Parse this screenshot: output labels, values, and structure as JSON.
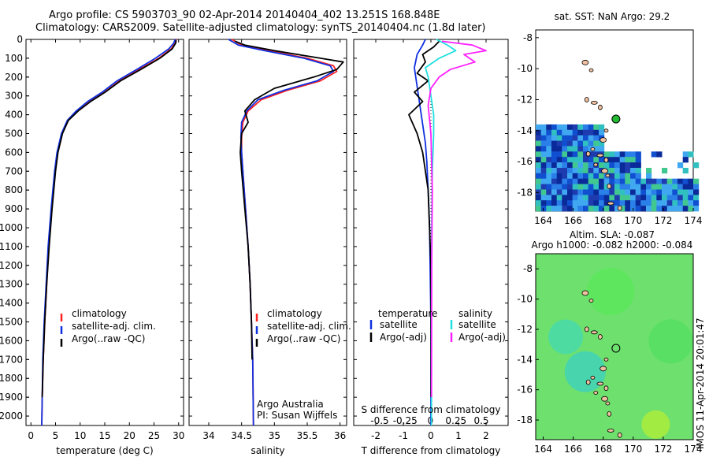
{
  "title": {
    "line1": "Argo profile: CS 5903703_90 02-Apr-2014 20140404_402 13.251S 168.848E",
    "line2": "Climatology: CARS2009. Satellite-adjusted climatology: synTS_20140404.nc (1.8d later)"
  },
  "colors": {
    "climatology": "#ff2020",
    "satellite": "#1030e0",
    "argo": "#000000",
    "sal_satellite": "#20e0e0",
    "sal_argo": "#ff20ff",
    "float_sst": "#22bb33"
  },
  "depth_axis": {
    "ticks": [
      0,
      100,
      200,
      300,
      400,
      500,
      600,
      700,
      800,
      900,
      1000,
      1100,
      1200,
      1300,
      1400,
      1500,
      1600,
      1700,
      1800,
      1900,
      2000
    ],
    "range": [
      0,
      2050
    ]
  },
  "chart_data": [
    {
      "type": "line",
      "id": "temperature",
      "xlabel": "temperature (deg C)",
      "xlim": [
        -1,
        31
      ],
      "xticks": [
        0,
        5,
        10,
        15,
        20,
        25,
        30
      ],
      "ylim": [
        0,
        2050
      ],
      "legend": [
        "climatology",
        "satellite-adj. clim.",
        "Argo(..raw -QC)"
      ],
      "series": [
        {
          "name": "climatology",
          "color": "#ff2020",
          "x": [
            29.5,
            29.3,
            28.5,
            26,
            22,
            18,
            15,
            12,
            9.5,
            7.5,
            6.3,
            5.4,
            4.9,
            4.2,
            3.6,
            3.2,
            2.8,
            2.5,
            2.3,
            2.2
          ],
          "y": [
            0,
            20,
            50,
            100,
            160,
            220,
            280,
            330,
            380,
            430,
            500,
            600,
            700,
            900,
            1100,
            1300,
            1500,
            1700,
            1900,
            2050
          ]
        },
        {
          "name": "satellite-adj. clim.",
          "color": "#1030e0",
          "x": [
            29.3,
            29,
            28,
            25.3,
            21.5,
            17.5,
            14.5,
            11.5,
            9.2,
            7.4,
            6.2,
            5.3,
            4.8,
            4.1,
            3.5,
            3.1,
            2.7,
            2.4,
            2.3,
            2.2
          ],
          "y": [
            0,
            20,
            50,
            100,
            160,
            220,
            280,
            330,
            380,
            430,
            500,
            600,
            700,
            900,
            1100,
            1300,
            1500,
            1700,
            1900,
            2050
          ]
        },
        {
          "name": "Argo(..raw -QC)",
          "color": "#000000",
          "x": [
            29.5,
            29.4,
            28.7,
            26.2,
            22.3,
            18.2,
            15.1,
            12.1,
            9.6,
            7.6,
            6.4,
            5.5,
            5,
            4.3,
            3.7,
            3.2,
            2.8,
            2.5,
            2.3
          ],
          "y": [
            5,
            20,
            50,
            100,
            160,
            220,
            280,
            330,
            380,
            430,
            500,
            600,
            700,
            900,
            1100,
            1300,
            1500,
            1700,
            1900
          ]
        }
      ]
    },
    {
      "type": "line",
      "id": "salinity",
      "xlabel": "salinity",
      "xlim": [
        33.7,
        36.1
      ],
      "xticks": [
        34,
        34.5,
        35,
        35.5,
        36
      ],
      "xticklabels": [
        "34",
        "34.5",
        "35",
        "35.5",
        "36"
      ],
      "ylim": [
        0,
        2050
      ],
      "legend": [
        "climatology",
        "satellite-adj. clim.",
        "Argo(..raw -QC)"
      ],
      "annotation": [
        "Argo Australia",
        "PI: Susan Wijffels"
      ],
      "series": [
        {
          "name": "climatology",
          "color": "#ff2020",
          "x": [
            34.35,
            34.5,
            34.9,
            35.5,
            35.9,
            35.95,
            35.7,
            35.2,
            34.8,
            34.6,
            34.52,
            34.5,
            34.5,
            34.52,
            34.56,
            34.6,
            34.63,
            34.65,
            34.67,
            34.68
          ],
          "y": [
            0,
            30,
            60,
            100,
            140,
            170,
            220,
            270,
            320,
            380,
            440,
            520,
            600,
            700,
            900,
            1100,
            1300,
            1500,
            1700,
            2050
          ]
        },
        {
          "name": "satellite-adj. clim.",
          "color": "#1030e0",
          "x": [
            34.3,
            34.45,
            34.85,
            35.45,
            35.85,
            35.9,
            35.65,
            35.15,
            34.75,
            34.58,
            34.5,
            34.49,
            34.5,
            34.52,
            34.56,
            34.6,
            34.63,
            34.65,
            34.67,
            34.68
          ],
          "y": [
            0,
            30,
            60,
            100,
            140,
            170,
            220,
            270,
            320,
            380,
            440,
            520,
            600,
            700,
            900,
            1100,
            1300,
            1500,
            1700,
            2050
          ]
        },
        {
          "name": "Argo(..raw -QC)",
          "color": "#000000",
          "x": [
            34.4,
            34.55,
            35,
            35.7,
            36.05,
            35.95,
            35.6,
            35,
            34.7,
            34.55,
            34.6,
            34.5,
            34.48,
            34.5,
            34.55,
            34.6,
            34.63,
            34.65,
            34.66
          ],
          "y": [
            10,
            30,
            60,
            100,
            120,
            160,
            200,
            260,
            320,
            380,
            440,
            500,
            600,
            700,
            900,
            1100,
            1300,
            1500,
            1700
          ]
        }
      ]
    },
    {
      "type": "line",
      "id": "difference",
      "xlabel": "T difference from climatology",
      "xlabel2": "S difference from climatology",
      "xlim": [
        -2.8,
        2.8
      ],
      "xticks": [
        -2,
        -1,
        0,
        1,
        2
      ],
      "xticks2": [
        -0.5,
        -0.25,
        0,
        0.25,
        0.5
      ],
      "xticklabels2": [
        "-0.5",
        "-0.25",
        "0",
        "0.25",
        "0.5"
      ],
      "ylim": [
        0,
        2050
      ],
      "legend_temperature_title": "temperature",
      "legend_salinity_title": "salinity",
      "legend_temperature": [
        "satellite",
        "Argo(-adj)"
      ],
      "legend_salinity": [
        "satellite",
        "Argo(-adj)"
      ],
      "series": [
        {
          "name": "temperature satellite",
          "color": "#1030e0",
          "x": [
            -0.2,
            -0.3,
            -0.5,
            -0.6,
            -0.5,
            -0.4,
            -0.3,
            -0.2,
            -0.15,
            -0.1,
            -0.05,
            0,
            0
          ],
          "y": [
            0,
            30,
            80,
            150,
            250,
            350,
            450,
            550,
            650,
            800,
            1000,
            1500,
            2050
          ]
        },
        {
          "name": "temperature Argo(-adj)",
          "color": "#000000",
          "x": [
            0.3,
            0.1,
            -0.3,
            -0.2,
            -0.5,
            -0.1,
            -0.6,
            -0.3,
            -0.8,
            -0.5,
            -0.3,
            -0.2,
            -0.1,
            0,
            0
          ],
          "y": [
            10,
            40,
            80,
            120,
            180,
            220,
            280,
            330,
            400,
            500,
            600,
            700,
            800,
            1200,
            1900
          ]
        },
        {
          "name": "salinity satellite",
          "color": "#20e0e0",
          "x": [
            0.2,
            0.6,
            0.9,
            0.3,
            -0.2,
            -0.1,
            0,
            0.1,
            0.1,
            0.05,
            0.03,
            0.02,
            0.02
          ],
          "y": [
            0,
            30,
            60,
            100,
            150,
            200,
            300,
            400,
            500,
            700,
            1000,
            1500,
            2050
          ]
        },
        {
          "name": "salinity Argo(-adj)",
          "color": "#ff20ff",
          "x": [
            0.4,
            1.5,
            2.0,
            1.2,
            1.6,
            0.7,
            0.3,
            0,
            -0.1,
            0,
            0.05,
            0.03,
            0.02
          ],
          "y": [
            10,
            30,
            60,
            80,
            120,
            160,
            200,
            260,
            350,
            500,
            800,
            1200,
            1900
          ]
        }
      ]
    },
    {
      "type": "heatmap",
      "id": "sst-map",
      "title": "sat. SST: NaN Argo: 29.2",
      "xlim": [
        163.5,
        174
      ],
      "ylim": [
        -19.2,
        -7.5
      ],
      "xticks": [
        164,
        166,
        168,
        170,
        172,
        174
      ],
      "yticks": [
        -8,
        -10,
        -12,
        -14,
        -16,
        -18
      ],
      "float_position": {
        "lon": 168.848,
        "lat": -13.251
      }
    },
    {
      "type": "heatmap",
      "id": "sla-map",
      "title": "Altim. SLA: -0.087",
      "subtitle": "Argo h1000: -0.082 h2000: -0.084",
      "xlim": [
        163.5,
        174
      ],
      "ylim": [
        -19.3,
        -7
      ],
      "xticks": [
        164,
        166,
        168,
        170,
        172,
        174
      ],
      "yticks": [
        -8,
        -10,
        -12,
        -14,
        -16,
        -18
      ],
      "float_position": {
        "lon": 168.848,
        "lat": -13.251
      }
    }
  ],
  "credit": "IMOS 11-Apr-2014 20:01:47"
}
